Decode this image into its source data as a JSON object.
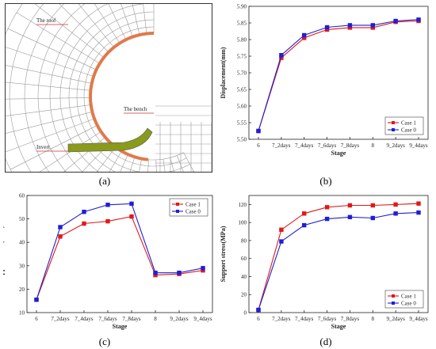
{
  "panel_a": {
    "caption": "(a)",
    "labels": {
      "roof": "The roof",
      "bench": "The bench",
      "invert": "Invert"
    }
  },
  "captions": {
    "b": "(b)",
    "c": "(c)",
    "d": "(d)"
  },
  "colors": {
    "case1": "#e0191b",
    "case0": "#1f1fd6",
    "lining": "#e07a4a",
    "invert": "#8a9a1a",
    "mesh": "#9a9a9a"
  },
  "chart_data": [
    {
      "panel": "b",
      "type": "line",
      "categories": [
        "6",
        "7_2days",
        "7_4days",
        "7_6days",
        "7_8days",
        "8",
        "9_2days",
        "9_4days"
      ],
      "xlabel": "Stage",
      "ylabel": "Displacement(mm)",
      "ylim": [
        5.5,
        5.9
      ],
      "yticks": [
        "5.50",
        "5.55",
        "5.60",
        "5.65",
        "5.70",
        "5.75",
        "5.80",
        "5.85",
        "5.90"
      ],
      "legend": "bottom-right",
      "series": [
        {
          "name": "Case 1",
          "values": [
            5.525,
            5.745,
            5.805,
            5.83,
            5.836,
            5.836,
            5.853,
            5.856
          ]
        },
        {
          "name": "Case 0",
          "values": [
            5.525,
            5.753,
            5.813,
            5.837,
            5.843,
            5.843,
            5.856,
            5.86
          ]
        }
      ]
    },
    {
      "panel": "c",
      "type": "line",
      "categories": [
        "6",
        "7_2days",
        "7_4days",
        "7_6days",
        "7_8days",
        "8",
        "9_2days",
        "9_4days"
      ],
      "xlabel": "Stage",
      "ylabel": "Support stress(MPa)",
      "ylim": [
        10,
        60
      ],
      "yticks": [
        "10",
        "20",
        "30",
        "40",
        "50",
        "60"
      ],
      "legend": "top-right",
      "series": [
        {
          "name": "Case 1",
          "values": [
            15.5,
            42.5,
            48.0,
            49.0,
            51.0,
            26.0,
            26.5,
            28.0
          ]
        },
        {
          "name": "Case 0",
          "values": [
            15.5,
            46.5,
            53.0,
            56.0,
            56.5,
            27.0,
            27.0,
            29.0
          ]
        }
      ]
    },
    {
      "panel": "d",
      "type": "line",
      "categories": [
        "6",
        "7_2days",
        "7_4days",
        "7_6days",
        "7_8days",
        "8",
        "9_2days",
        "9_4days"
      ],
      "xlabel": "Stage",
      "ylabel": "Support stress(MPa)",
      "ylim": [
        0,
        130
      ],
      "yticks": [
        "0",
        "20",
        "40",
        "60",
        "80",
        "100",
        "120"
      ],
      "legend": "bottom-right",
      "series": [
        {
          "name": "Case 1",
          "values": [
            3,
            92,
            110,
            117,
            119,
            119,
            120,
            121
          ]
        },
        {
          "name": "Case 0",
          "values": [
            3,
            79,
            97,
            104,
            106,
            105,
            110,
            111
          ]
        }
      ]
    }
  ]
}
